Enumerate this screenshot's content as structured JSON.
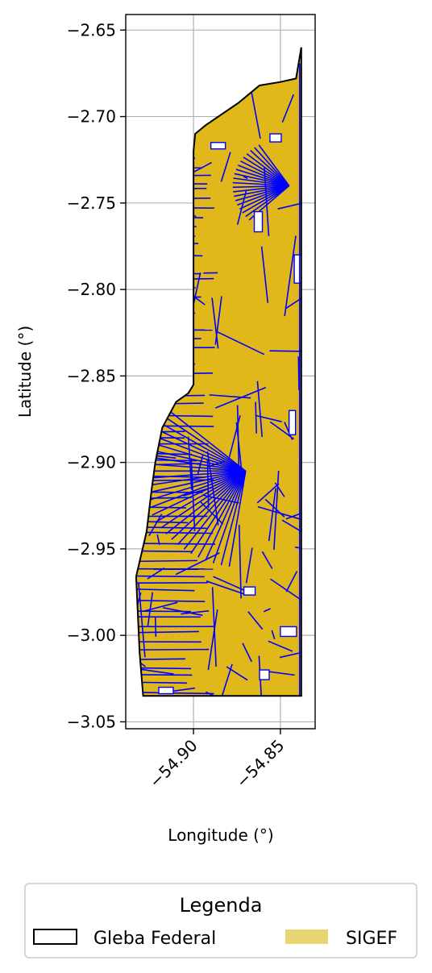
{
  "chart_data": {
    "type": "map",
    "xlabel": "Longitude (°)",
    "ylabel": "Latitude (°)",
    "xlim": [
      -54.939,
      -54.83
    ],
    "ylim": [
      -3.054,
      -2.641
    ],
    "x_ticks": [
      {
        "value": -54.9,
        "label": "−54.90"
      },
      {
        "value": -54.85,
        "label": "−54.85"
      }
    ],
    "y_ticks": [
      {
        "value": -2.65,
        "label": "−2.65"
      },
      {
        "value": -2.7,
        "label": "−2.70"
      },
      {
        "value": -2.75,
        "label": "−2.75"
      },
      {
        "value": -2.8,
        "label": "−2.80"
      },
      {
        "value": -2.85,
        "label": "−2.85"
      },
      {
        "value": -2.9,
        "label": "−2.90"
      },
      {
        "value": -2.95,
        "label": "−2.95"
      },
      {
        "value": -3.0,
        "label": "−3.00"
      },
      {
        "value": -3.05,
        "label": "−3.05"
      }
    ],
    "grid": true,
    "gleba_boundary": [
      [
        -54.838,
        -2.66
      ],
      [
        -54.841,
        -2.678
      ],
      [
        -54.85,
        -2.68
      ],
      [
        -54.862,
        -2.682
      ],
      [
        -54.874,
        -2.692
      ],
      [
        -54.893,
        -2.705
      ],
      [
        -54.899,
        -2.71
      ],
      [
        -54.9,
        -2.72
      ],
      [
        -54.9,
        -2.845
      ],
      [
        -54.9,
        -2.855
      ],
      [
        -54.903,
        -2.86
      ],
      [
        -54.91,
        -2.865
      ],
      [
        -54.918,
        -2.88
      ],
      [
        -54.922,
        -2.9
      ],
      [
        -54.924,
        -2.915
      ],
      [
        -54.927,
        -2.94
      ],
      [
        -54.933,
        -2.966
      ],
      [
        -54.931,
        -3.01
      ],
      [
        -54.929,
        -3.035
      ],
      [
        -54.838,
        -3.035
      ],
      [
        -54.838,
        -2.66
      ]
    ],
    "series": [
      {
        "name": "Gleba Federal",
        "type": "outline",
        "color": "#000000"
      },
      {
        "name": "SIGEF",
        "type": "fill",
        "color": "#e0b81a",
        "edge_color": "#0000ff"
      }
    ],
    "legend": {
      "title": "Legenda",
      "position": "bottom",
      "entries": [
        {
          "label": "Gleba Federal",
          "swatch": "outline"
        },
        {
          "label": "SIGEF",
          "swatch": "fill",
          "color": "#e8d470"
        }
      ]
    }
  }
}
